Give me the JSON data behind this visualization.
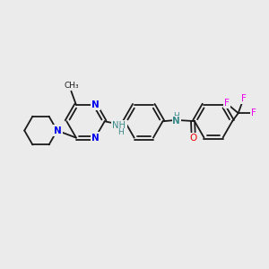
{
  "bg_color": "#ebebeb",
  "bond_color": "#1a1a1a",
  "N_color": "#0000ee",
  "O_color": "#ee0000",
  "F_color": "#ee00ee",
  "NH_color": "#3a8a8a",
  "line_width": 1.3,
  "figsize": [
    3.0,
    3.0
  ],
  "dpi": 100,
  "xlim": [
    0,
    10
  ],
  "ylim": [
    0,
    10
  ]
}
